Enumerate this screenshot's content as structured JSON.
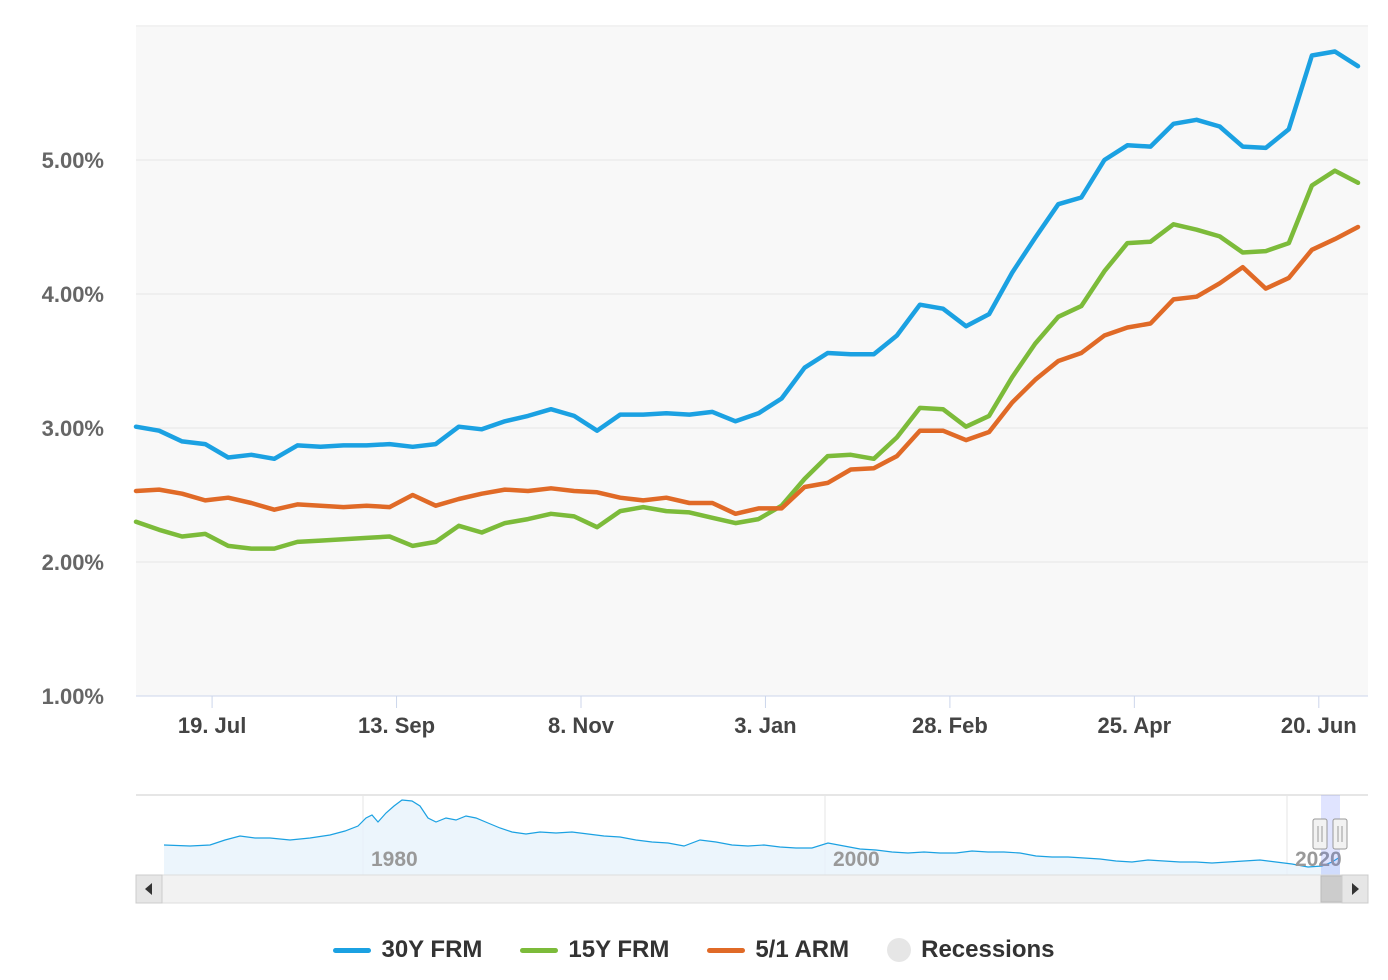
{
  "chart_data": {
    "type": "line",
    "title": "",
    "xlabel": "",
    "ylabel": "",
    "ylim": [
      1.0,
      6.0
    ],
    "yticks": [
      "1.00%",
      "2.00%",
      "3.00%",
      "4.00%",
      "5.00%"
    ],
    "y_tick_values": [
      1,
      2,
      3,
      4,
      5
    ],
    "xticks": [
      "19. Jul",
      "13. Sep",
      "8. Nov",
      "3. Jan",
      "28. Feb",
      "25. Apr",
      "20. Jun"
    ],
    "grid": true,
    "legend_position": "bottom-center",
    "series": [
      {
        "name": "30Y FRM",
        "color": "#1ba1e2",
        "values": [
          3.01,
          2.98,
          2.9,
          2.88,
          2.78,
          2.8,
          2.77,
          2.87,
          2.86,
          2.87,
          2.87,
          2.88,
          2.86,
          2.88,
          3.01,
          2.99,
          3.05,
          3.09,
          3.14,
          3.09,
          2.98,
          3.1,
          3.1,
          3.11,
          3.1,
          3.12,
          3.05,
          3.11,
          3.22,
          3.45,
          3.56,
          3.55,
          3.55,
          3.69,
          3.92,
          3.89,
          3.76,
          3.85,
          4.16,
          4.42,
          4.67,
          4.72,
          5.0,
          5.11,
          5.1,
          5.27,
          5.3,
          5.25,
          5.1,
          5.09,
          5.23,
          5.78,
          5.81,
          5.7
        ]
      },
      {
        "name": "15Y FRM",
        "color": "#7cbb3a",
        "values": [
          2.3,
          2.24,
          2.19,
          2.21,
          2.12,
          2.1,
          2.1,
          2.15,
          2.16,
          2.17,
          2.18,
          2.19,
          2.12,
          2.15,
          2.27,
          2.22,
          2.29,
          2.32,
          2.36,
          2.34,
          2.26,
          2.38,
          2.41,
          2.38,
          2.37,
          2.33,
          2.29,
          2.32,
          2.42,
          2.62,
          2.79,
          2.8,
          2.77,
          2.93,
          3.15,
          3.14,
          3.01,
          3.09,
          3.38,
          3.63,
          3.83,
          3.91,
          4.17,
          4.38,
          4.39,
          4.52,
          4.48,
          4.43,
          4.31,
          4.32,
          4.38,
          4.81,
          4.92,
          4.83
        ]
      },
      {
        "name": "5/1 ARM",
        "color": "#e06a27",
        "values": [
          2.53,
          2.54,
          2.51,
          2.46,
          2.48,
          2.44,
          2.39,
          2.43,
          2.42,
          2.41,
          2.42,
          2.41,
          2.5,
          2.42,
          2.47,
          2.51,
          2.54,
          2.53,
          2.55,
          2.53,
          2.52,
          2.48,
          2.46,
          2.48,
          2.44,
          2.44,
          2.36,
          2.4,
          2.4,
          2.56,
          2.59,
          2.69,
          2.7,
          2.79,
          2.98,
          2.98,
          2.91,
          2.97,
          3.19,
          3.36,
          3.5,
          3.56,
          3.69,
          3.75,
          3.78,
          3.96,
          3.98,
          4.08,
          4.2,
          4.04,
          4.12,
          4.33,
          4.41,
          4.5
        ]
      }
    ],
    "navigator": {
      "labels": [
        "1980",
        "2000",
        "2020"
      ],
      "recessions_label": "Recessions"
    }
  }
}
